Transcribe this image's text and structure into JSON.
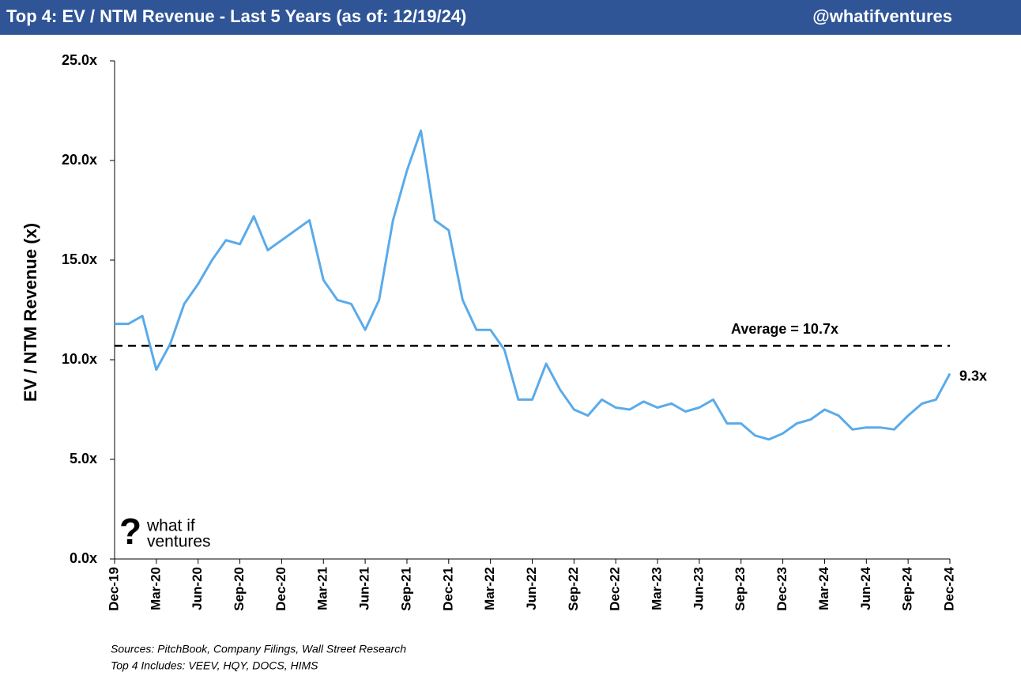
{
  "header": {
    "title": "Top 4: EV / NTM Revenue - Last 5 Years (as of: 12/19/24)",
    "handle": "@whatifventures"
  },
  "chart_data": {
    "type": "line",
    "y_label": "EV / NTM Revenue (x)",
    "categories": [
      "Dec-19",
      null,
      null,
      "Mar-20",
      null,
      null,
      "Jun-20",
      null,
      null,
      "Sep-20",
      null,
      null,
      "Dec-20",
      null,
      null,
      "Mar-21",
      null,
      null,
      "Jun-21",
      null,
      null,
      "Sep-21",
      null,
      null,
      "Dec-21",
      null,
      null,
      "Mar-22",
      null,
      null,
      "Jun-22",
      null,
      null,
      "Sep-22",
      null,
      null,
      "Dec-22",
      null,
      null,
      "Mar-23",
      null,
      null,
      "Jun-23",
      null,
      null,
      "Sep-23",
      null,
      null,
      "Dec-23",
      null,
      null,
      "Mar-24",
      null,
      null,
      "Jun-24",
      null,
      null,
      "Sep-24",
      null,
      null,
      "Dec-24"
    ],
    "values": [
      11.8,
      11.8,
      12.2,
      9.5,
      10.8,
      12.8,
      13.8,
      15.0,
      16.0,
      15.8,
      17.2,
      15.5,
      16.0,
      16.5,
      17.0,
      14.0,
      13.0,
      12.8,
      11.5,
      13.0,
      17.0,
      19.5,
      21.5,
      17.0,
      16.5,
      13.0,
      11.5,
      11.5,
      10.5,
      8.0,
      8.0,
      9.8,
      8.5,
      7.5,
      7.2,
      8.0,
      7.6,
      7.5,
      7.9,
      7.6,
      7.8,
      7.4,
      7.6,
      8.0,
      6.8,
      6.8,
      6.2,
      6.0,
      6.3,
      6.8,
      7.0,
      7.5,
      7.2,
      6.5,
      6.6,
      6.6,
      6.5,
      7.2,
      7.8,
      8.0,
      9.3
    ],
    "color": "#5aabea",
    "last_label": "9.3x",
    "average": {
      "value": 10.7,
      "label": "Average = 10.7x"
    },
    "ylim": [
      0,
      25
    ],
    "yticks": [
      {
        "value": 0,
        "label": "0.0x"
      },
      {
        "value": 5,
        "label": "5.0x"
      },
      {
        "value": 10,
        "label": "10.0x"
      },
      {
        "value": 15,
        "label": "15.0x"
      },
      {
        "value": 20,
        "label": "20.0x"
      },
      {
        "value": 25,
        "label": "25.0x"
      }
    ]
  },
  "logo": {
    "mark": "?",
    "line1": "what if",
    "line2": "ventures"
  },
  "sources": [
    "Sources: PitchBook, Company Filings, Wall Street Research",
    "Top 4 Includes: VEEV, HQY, DOCS, HIMS"
  ]
}
